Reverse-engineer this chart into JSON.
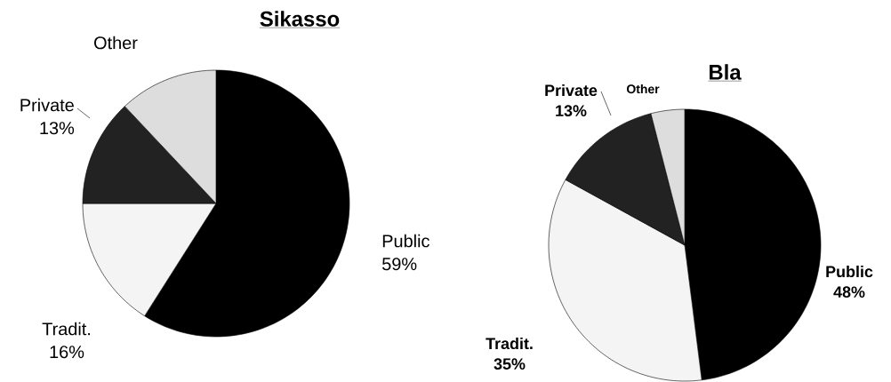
{
  "chart_data": [
    {
      "type": "pie",
      "title": "Sikasso",
      "categories": [
        "Public",
        "Tradit.",
        "Private",
        "Other"
      ],
      "values": [
        59,
        16,
        13,
        12
      ],
      "value_labels": [
        "59%",
        "16%",
        "13%",
        null
      ],
      "colors": [
        "#000000",
        "#f4f4f4",
        "#222222",
        "#dddddd"
      ]
    },
    {
      "type": "pie",
      "title": "Bla",
      "categories": [
        "Public",
        "Tradit.",
        "Private",
        "Other"
      ],
      "values": [
        48,
        35,
        13,
        4
      ],
      "value_labels": [
        "48%",
        "35%",
        "13%",
        null
      ],
      "colors": [
        "#000000",
        "#f4f4f4",
        "#222222",
        "#dddddd"
      ]
    }
  ]
}
